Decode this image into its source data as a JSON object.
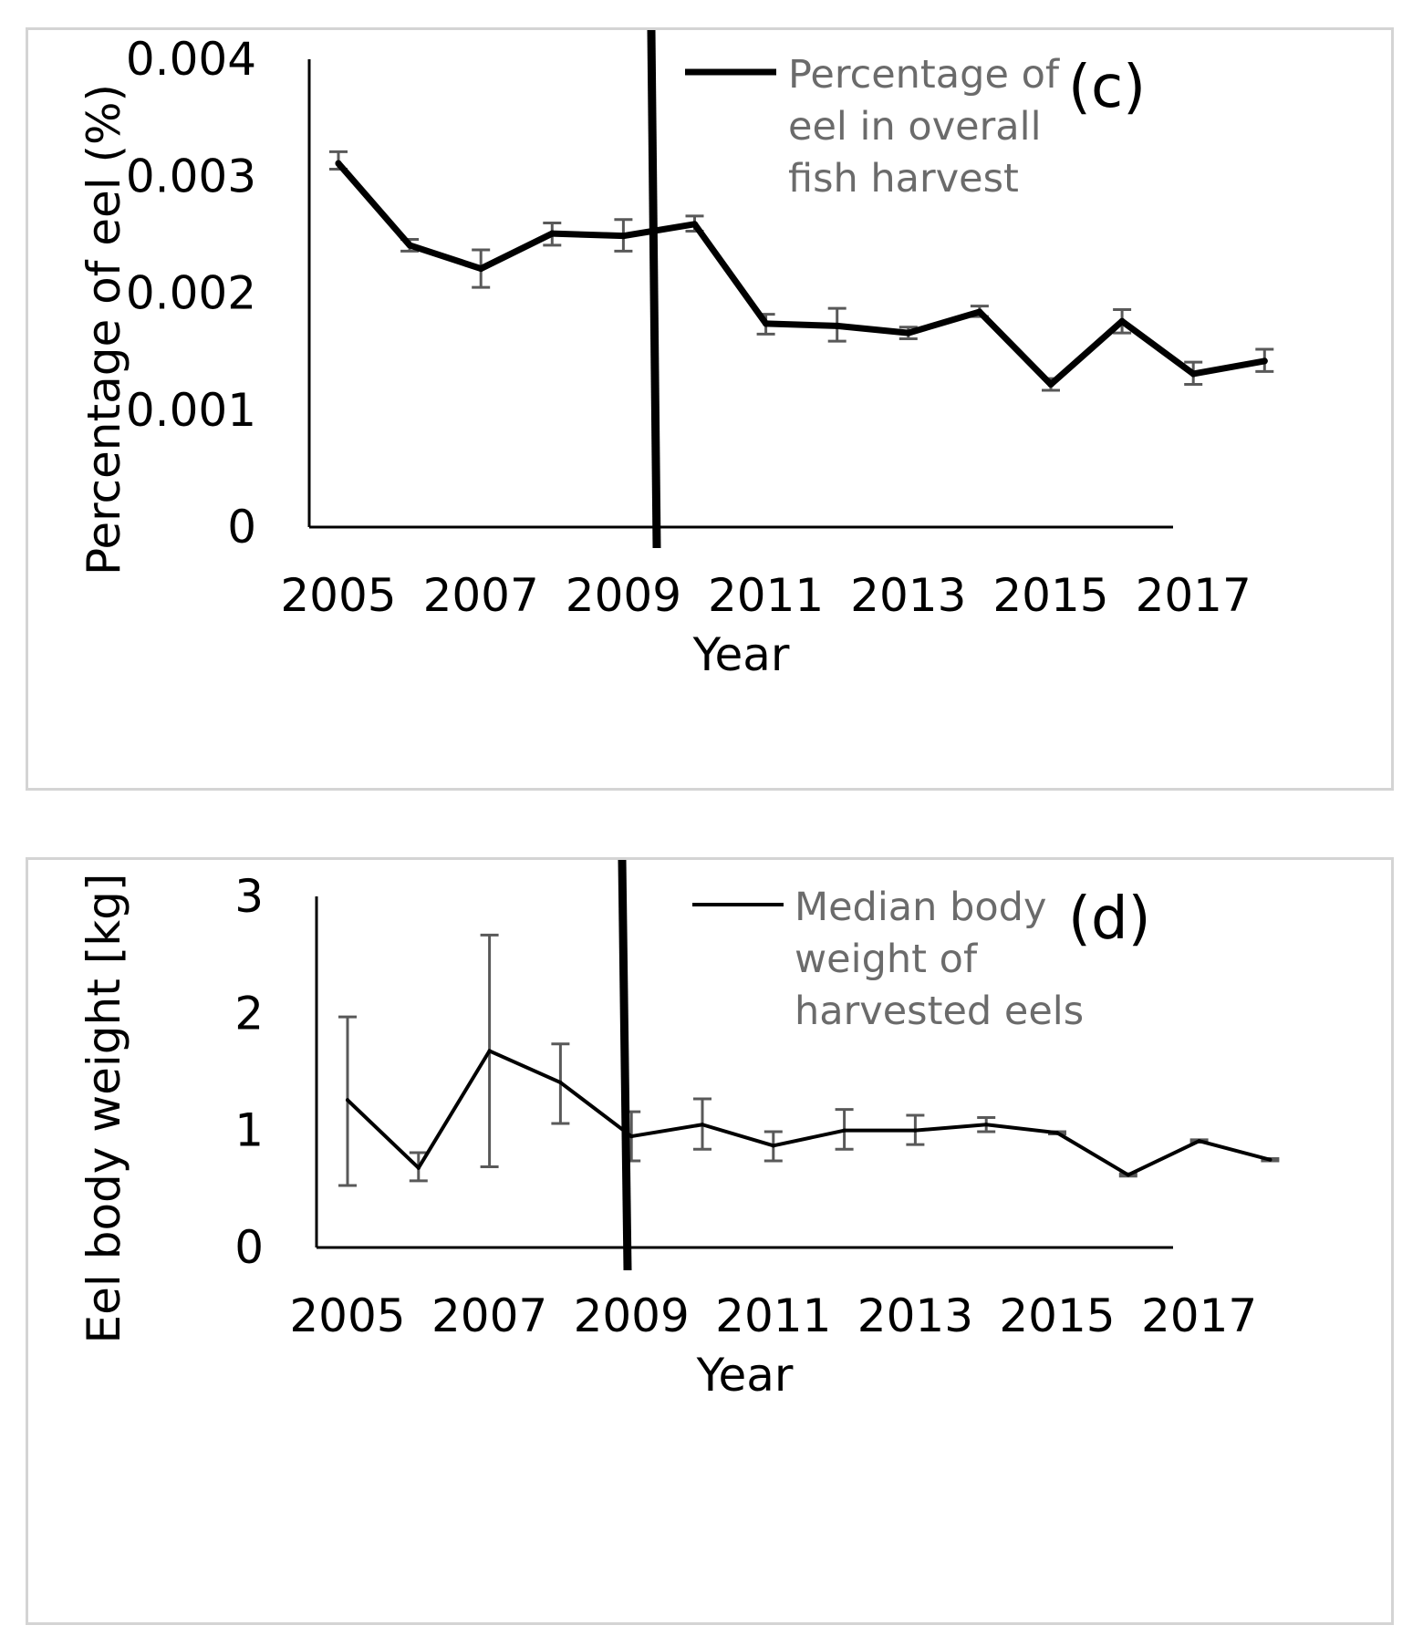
{
  "chart_data": [
    {
      "type": "line",
      "panel_label": "(c)",
      "xlabel": "Year",
      "ylabel": "Percentage of eel (%)",
      "x": [
        2005,
        2006,
        2007,
        2008,
        2009,
        2010,
        2011,
        2012,
        2013,
        2014,
        2015,
        2016,
        2017,
        2018
      ],
      "x_tick_labels": [
        "2005",
        "2007",
        "2009",
        "2011",
        "2013",
        "2015",
        "2017"
      ],
      "y_tick_labels": [
        "0",
        "0.001",
        "0.002",
        "0.003",
        "0.004"
      ],
      "y_ticks": [
        0,
        0.001,
        0.002,
        0.003,
        0.004
      ],
      "ylim": [
        0,
        0.004
      ],
      "series": [
        {
          "name": "Percentage of eel in overall fish harvest",
          "legend_lines": [
            "Percentage of",
            "eel in overall",
            "fish harvest"
          ],
          "values": [
            0.00311,
            0.00241,
            0.00221,
            0.00251,
            0.00249,
            0.00259,
            0.00174,
            0.00172,
            0.00166,
            0.00184,
            0.00122,
            0.00176,
            0.00131,
            0.00142
          ],
          "error_low": [
            0.00306,
            0.00236,
            0.00205,
            0.00241,
            0.00236,
            0.00253,
            0.00165,
            0.00159,
            0.00161,
            0.0018,
            0.00117,
            0.00166,
            0.00122,
            0.00133
          ],
          "error_high": [
            0.00321,
            0.00246,
            0.00237,
            0.0026,
            0.00263,
            0.00266,
            0.00182,
            0.00187,
            0.00171,
            0.00189,
            0.00127,
            0.00186,
            0.00141,
            0.00152
          ]
        }
      ],
      "reference_line": {
        "year": 2010.05,
        "note": "vertical thick line"
      },
      "grid": false,
      "legend_position": "top-right"
    },
    {
      "type": "line",
      "panel_label": "(d)",
      "xlabel": "Year",
      "ylabel": "Eel body weight [kg]",
      "x": [
        2005,
        2006,
        2007,
        2008,
        2009,
        2010,
        2011,
        2012,
        2013,
        2014,
        2015,
        2016,
        2017,
        2018
      ],
      "x_tick_labels": [
        "2005",
        "2007",
        "2009",
        "2011",
        "2013",
        "2015",
        "2017"
      ],
      "y_tick_labels": [
        "0",
        "1",
        "2",
        "3"
      ],
      "y_ticks": [
        0,
        1,
        2,
        3
      ],
      "ylim": [
        0,
        3
      ],
      "series": [
        {
          "name": "Median body weight of harvested eels",
          "legend_lines": [
            "Median body",
            "weight of",
            "harvested eels"
          ],
          "values": [
            1.26,
            0.68,
            1.68,
            1.41,
            0.95,
            1.05,
            0.87,
            1.0,
            1.0,
            1.05,
            0.98,
            0.62,
            0.91,
            0.75
          ],
          "error_low": [
            0.53,
            0.57,
            0.69,
            1.06,
            0.74,
            0.84,
            0.74,
            0.84,
            0.88,
            0.99,
            0.97,
            0.61,
            0.9,
            0.74
          ],
          "error_high": [
            1.97,
            0.81,
            2.67,
            1.74,
            1.16,
            1.27,
            0.99,
            1.18,
            1.13,
            1.11,
            0.99,
            0.63,
            0.92,
            0.76
          ]
        }
      ],
      "reference_line": {
        "year": 2009.55,
        "note": "vertical thick line"
      },
      "grid": false,
      "legend_position": "top-right"
    }
  ]
}
